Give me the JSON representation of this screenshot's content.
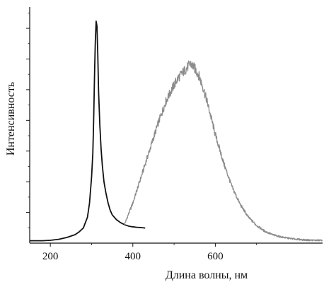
{
  "chart_data": {
    "type": "line",
    "title": "",
    "xlabel": "Длина волны, нм",
    "ylabel": "Интенсивность",
    "xlim": [
      150,
      860
    ],
    "ylim": [
      0,
      1.0
    ],
    "x_ticks": [
      200,
      400,
      600
    ],
    "x_tick_labels": [
      "200",
      "400",
      "600"
    ],
    "y_ticks": [
      0.13,
      0.26,
      0.39,
      0.52,
      0.65,
      0.78,
      0.91
    ],
    "show_y_tick_labels": false,
    "grid": false,
    "legend": "none",
    "series": [
      {
        "color": "#111111",
        "x": [
          150,
          180,
          200,
          220,
          240,
          260,
          270,
          280,
          290,
          295,
          300,
          303,
          305,
          307,
          309,
          311,
          313,
          315,
          317,
          320,
          323,
          326,
          330,
          335,
          340,
          345,
          350,
          360,
          370,
          380,
          390,
          400,
          410,
          420,
          430
        ],
        "y": [
          0.01,
          0.01,
          0.012,
          0.016,
          0.024,
          0.036,
          0.048,
          0.064,
          0.11,
          0.17,
          0.28,
          0.38,
          0.52,
          0.7,
          0.85,
          0.94,
          0.92,
          0.8,
          0.64,
          0.5,
          0.4,
          0.33,
          0.26,
          0.21,
          0.17,
          0.14,
          0.12,
          0.1,
          0.087,
          0.078,
          0.072,
          0.069,
          0.067,
          0.066,
          0.064
        ]
      },
      {
        "color": "#8c8c8c",
        "x": [
          380,
          400,
          420,
          440,
          460,
          480,
          500,
          510,
          520,
          530,
          540,
          545,
          550,
          560,
          570,
          580,
          600,
          620,
          640,
          660,
          680,
          700,
          720,
          740,
          760,
          780,
          800,
          820,
          840,
          860
        ],
        "y": [
          0.08,
          0.17,
          0.28,
          0.39,
          0.5,
          0.6,
          0.67,
          0.7,
          0.72,
          0.74,
          0.76,
          0.75,
          0.74,
          0.71,
          0.66,
          0.6,
          0.46,
          0.34,
          0.24,
          0.165,
          0.11,
          0.075,
          0.05,
          0.035,
          0.026,
          0.02,
          0.016,
          0.013,
          0.012,
          0.012
        ]
      }
    ]
  }
}
